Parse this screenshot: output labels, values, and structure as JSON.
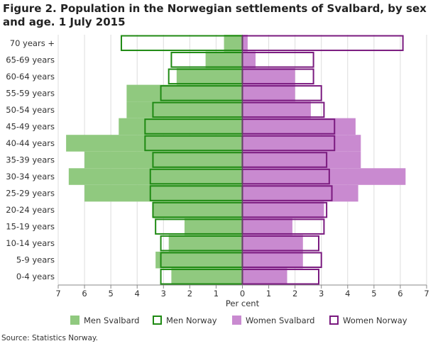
{
  "title": "Figure 2. Population in the Norwegian settlements of Svalbard, by sex and age. 1 July 2015",
  "source": "Source: Statistics Norway.",
  "colors": {
    "men_svalbard": "#90c97f",
    "men_norway": "#1f8a13",
    "women_svalbard": "#c98ad0",
    "women_norway": "#7a1a7f",
    "grid": "#dddddd",
    "axis": "#888888"
  },
  "chart_data": {
    "type": "bar",
    "orientation": "horizontal-population-pyramid",
    "xlabel": "Per cent",
    "ylabel": "",
    "xlim": [
      -7,
      7
    ],
    "x_ticks": [
      -7,
      -6,
      -5,
      -4,
      -3,
      -2,
      -1,
      0,
      1,
      2,
      3,
      4,
      5,
      6,
      7
    ],
    "x_tick_labels": [
      "7",
      "6",
      "5",
      "4",
      "3",
      "2",
      "1",
      "0",
      "1",
      "2",
      "3",
      "4",
      "5",
      "6",
      "7"
    ],
    "categories": [
      "70 years +",
      "65-69 years",
      "60-64 years",
      "55-59 years",
      "50-54 years",
      "45-49 years",
      "40-44 years",
      "35-39 years",
      "30-34 years",
      "25-29 years",
      "20-24 years",
      "15-19 years",
      "10-14 years",
      "5-9 years",
      "0-4 years"
    ],
    "series": [
      {
        "name": "Men Svalbard",
        "side": "left",
        "style": "filled",
        "values": [
          0.7,
          1.4,
          2.5,
          4.4,
          4.4,
          4.7,
          6.7,
          6.0,
          6.6,
          6.0,
          3.4,
          2.2,
          2.8,
          3.3,
          2.7
        ]
      },
      {
        "name": "Men Norway",
        "side": "left",
        "style": "outline",
        "values": [
          4.6,
          2.7,
          2.8,
          3.1,
          3.4,
          3.7,
          3.7,
          3.4,
          3.5,
          3.5,
          3.4,
          3.3,
          3.1,
          3.1,
          3.1
        ]
      },
      {
        "name": "Women Svalbard",
        "side": "right",
        "style": "filled",
        "values": [
          0.2,
          0.5,
          2.0,
          2.0,
          2.6,
          4.3,
          4.5,
          4.5,
          6.2,
          4.4,
          3.1,
          1.9,
          2.3,
          2.3,
          1.7
        ]
      },
      {
        "name": "Women Norway",
        "side": "right",
        "style": "outline",
        "values": [
          6.1,
          2.7,
          2.7,
          3.0,
          3.1,
          3.5,
          3.5,
          3.2,
          3.3,
          3.4,
          3.2,
          3.1,
          2.9,
          3.0,
          2.9
        ]
      }
    ],
    "legend": [
      "Men Svalbard",
      "Men Norway",
      "Women Svalbard",
      "Women Norway"
    ],
    "legend_position": "bottom",
    "grid": true
  }
}
